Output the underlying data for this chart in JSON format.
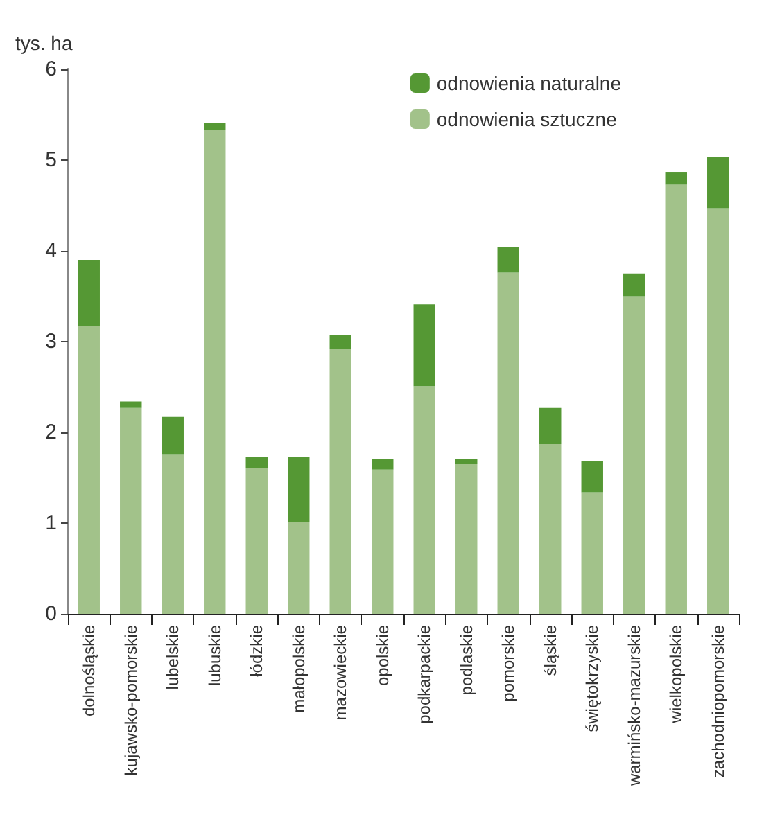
{
  "chart_data": {
    "type": "bar",
    "ylabel": "tys. ha",
    "stacked": true,
    "categories": [
      "dolnośląskie",
      "kujawsko-pomorskie",
      "lubelskie",
      "lubuskie",
      "łódzkie",
      "małopolskie",
      "mazowieckie",
      "opolskie",
      "podkarpackie",
      "podlaskie",
      "pomorskie",
      "śląskie",
      "świętokrzyskie",
      "warmińsko-mazurskie",
      "wielkopolskie",
      "zachodniopomorskie"
    ],
    "series": [
      {
        "name": "odnowienia sztuczne",
        "color": "#a2c28a",
        "values": [
          3.17,
          2.27,
          1.76,
          5.33,
          1.61,
          1.01,
          2.92,
          1.59,
          2.51,
          1.65,
          3.76,
          1.87,
          1.34,
          3.5,
          4.73,
          4.47
        ]
      },
      {
        "name": "odnowienia naturalne",
        "color": "#559834",
        "values": [
          0.73,
          0.07,
          0.41,
          0.08,
          0.12,
          0.72,
          0.15,
          0.12,
          0.9,
          0.06,
          0.28,
          0.4,
          0.34,
          0.25,
          0.14,
          0.56
        ]
      }
    ],
    "ylim": [
      0,
      6
    ],
    "yticks": [
      0,
      1,
      2,
      3,
      4,
      5,
      6
    ],
    "grid": false,
    "legend": "top right"
  }
}
